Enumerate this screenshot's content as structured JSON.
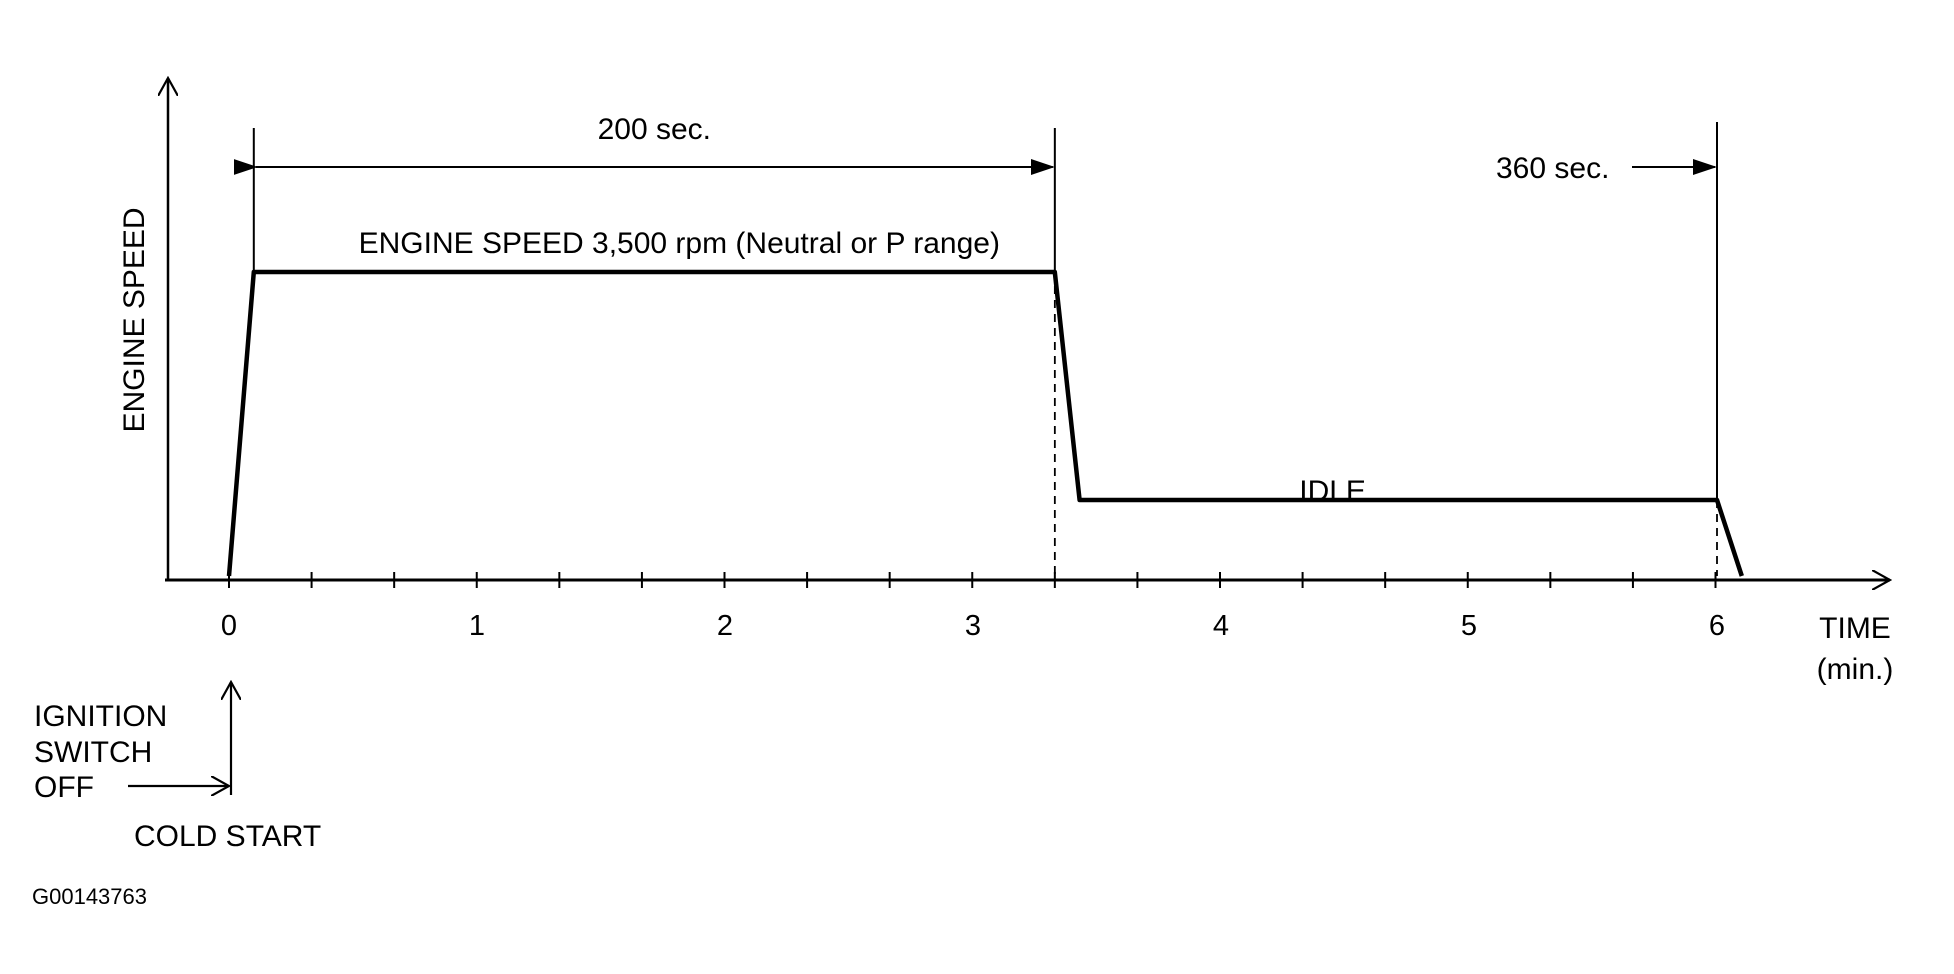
{
  "chart_data": {
    "type": "line",
    "title": "",
    "ylabel": "ENGINE SPEED",
    "xlabel": "TIME",
    "xlabel_unit": "(min.)",
    "x_ticks": [
      "0",
      "1",
      "2",
      "3",
      "4",
      "5",
      "6"
    ],
    "xlim": [
      -0.25,
      6.6
    ],
    "minor_tick_step_min": 0.333,
    "series": [
      {
        "points": [
          {
            "x": 0.0,
            "y": 0
          },
          {
            "x": 0.1,
            "y": 3500
          },
          {
            "x": 3.33,
            "y": 3500
          },
          {
            "x": 3.43,
            "y": 875
          },
          {
            "x": 6.0,
            "y": 875
          },
          {
            "x": 6.1,
            "y": 0
          }
        ]
      }
    ],
    "ylim": [
      0,
      4000
    ],
    "annotations": {
      "plateau_label": "ENGINE SPEED 3,500 rpm (Neutral or P range)",
      "idle_label": "IDLE",
      "duration_label": "200 sec.",
      "duration_start_min": 0.1,
      "duration_end_min": 3.33,
      "end_label": "360 sec.",
      "end_min": 6.0,
      "ignition_label_lines": [
        "IGNITION",
        "SWITCH",
        "OFF"
      ],
      "cold_start_label": "COLD START"
    },
    "figure_id": "G00143763",
    "line_color": "#000000"
  }
}
